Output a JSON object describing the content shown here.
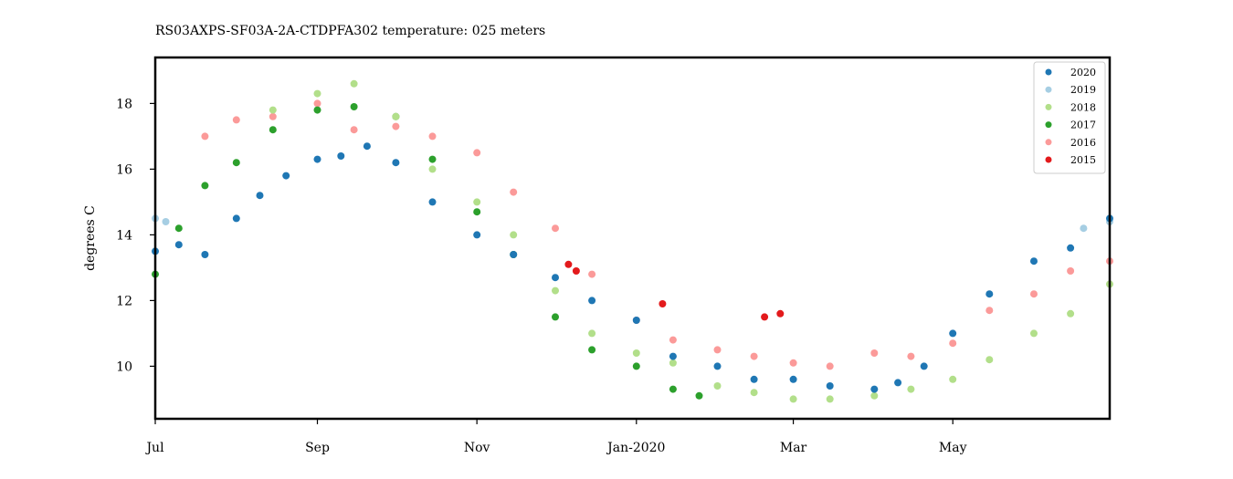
{
  "chart_data": {
    "type": "scatter",
    "title": "RS03AXPS-SF03A-2A-CTDPFA302 temperature: 025 meters",
    "xlabel": "",
    "ylabel": "degrees C",
    "x_ticks": [
      "Jul",
      "Sep",
      "Nov",
      "Jan-2020",
      "Mar",
      "May"
    ],
    "x_tick_dates": [
      "2019-07-01",
      "2019-09-01",
      "2019-11-01",
      "2020-01-01",
      "2020-03-01",
      "2020-05-01"
    ],
    "xlim": [
      "2019-07-01",
      "2020-06-30"
    ],
    "ylim": [
      8.4,
      19.4
    ],
    "y_ticks": [
      10,
      12,
      14,
      16,
      18
    ],
    "grid": false,
    "legend_position": "top-right",
    "series": [
      {
        "name": "2020",
        "color": "#1f77b4",
        "x": [
          "2019-07-01",
          "2019-07-10",
          "2019-07-20",
          "2019-08-01",
          "2019-08-10",
          "2019-08-20",
          "2019-09-01",
          "2019-09-10",
          "2019-09-20",
          "2019-10-01",
          "2019-10-15",
          "2019-11-01",
          "2019-11-15",
          "2019-12-01",
          "2019-12-15",
          "2020-01-01",
          "2020-01-15",
          "2020-02-01",
          "2020-02-15",
          "2020-03-01",
          "2020-03-15",
          "2020-04-01",
          "2020-04-10",
          "2020-04-20",
          "2020-05-01",
          "2020-05-15",
          "2020-06-01",
          "2020-06-15",
          "2020-06-30"
        ],
        "y": [
          13.5,
          13.7,
          13.4,
          14.5,
          15.2,
          15.8,
          16.3,
          16.4,
          16.7,
          16.2,
          15.0,
          14.0,
          13.4,
          12.7,
          12.0,
          11.4,
          10.3,
          10.0,
          9.6,
          9.6,
          9.4,
          9.3,
          9.5,
          10.0,
          11.0,
          12.2,
          13.2,
          13.6,
          14.5
        ]
      },
      {
        "name": "2019",
        "color": "#a6cee3",
        "x": [
          "2019-07-01",
          "2019-07-05",
          "2020-06-20",
          "2020-06-30"
        ],
        "y": [
          14.5,
          14.4,
          14.2,
          14.4
        ]
      },
      {
        "name": "2018",
        "color": "#b2df8a",
        "x": [
          "2019-08-15",
          "2019-09-01",
          "2019-09-15",
          "2019-10-01",
          "2019-10-15",
          "2019-11-01",
          "2019-11-15",
          "2019-12-01",
          "2019-12-15",
          "2020-01-01",
          "2020-01-15",
          "2020-02-01",
          "2020-02-15",
          "2020-03-01",
          "2020-03-15",
          "2020-04-01",
          "2020-04-15",
          "2020-05-01",
          "2020-05-15",
          "2020-06-01",
          "2020-06-15",
          "2020-06-30"
        ],
        "y": [
          17.8,
          18.3,
          18.6,
          17.6,
          16.0,
          15.0,
          14.0,
          12.3,
          11.0,
          10.4,
          10.1,
          9.4,
          9.2,
          9.0,
          9.0,
          9.1,
          9.3,
          9.6,
          10.2,
          11.0,
          11.6,
          12.5
        ]
      },
      {
        "name": "2017",
        "color": "#2ca02c",
        "x": [
          "2019-07-01",
          "2019-07-10",
          "2019-07-20",
          "2019-08-01",
          "2019-08-15",
          "2019-09-01",
          "2019-09-15",
          "2019-10-01",
          "2019-10-15",
          "2019-11-01",
          "2019-11-15",
          "2019-12-01",
          "2019-12-15",
          "2020-01-01",
          "2020-01-15",
          "2020-01-25"
        ],
        "y": [
          12.8,
          14.2,
          15.5,
          16.2,
          17.2,
          17.8,
          17.9,
          17.6,
          16.3,
          14.7,
          13.4,
          11.5,
          10.5,
          10.0,
          9.3,
          9.1
        ]
      },
      {
        "name": "2016",
        "color": "#fb9a99",
        "x": [
          "2019-07-20",
          "2019-08-01",
          "2019-08-15",
          "2019-09-01",
          "2019-09-15",
          "2019-10-01",
          "2019-10-15",
          "2019-11-01",
          "2019-11-15",
          "2019-12-01",
          "2019-12-15",
          "2020-01-01",
          "2020-01-15",
          "2020-02-01",
          "2020-02-15",
          "2020-03-01",
          "2020-03-15",
          "2020-04-01",
          "2020-04-15",
          "2020-05-01",
          "2020-05-15",
          "2020-06-01",
          "2020-06-15",
          "2020-06-30"
        ],
        "y": [
          17.0,
          17.5,
          17.6,
          18.0,
          17.2,
          17.3,
          17.0,
          16.5,
          15.3,
          14.2,
          12.8,
          11.4,
          10.8,
          10.5,
          10.3,
          10.1,
          10.0,
          10.4,
          10.3,
          10.7,
          11.7,
          12.2,
          12.9,
          13.2
        ]
      },
      {
        "name": "2015",
        "color": "#e31a1c",
        "x": [
          "2019-12-06",
          "2019-12-09",
          "2020-01-11",
          "2020-02-19",
          "2020-02-25"
        ],
        "y": [
          13.1,
          12.9,
          11.9,
          11.5,
          11.6
        ]
      }
    ]
  }
}
